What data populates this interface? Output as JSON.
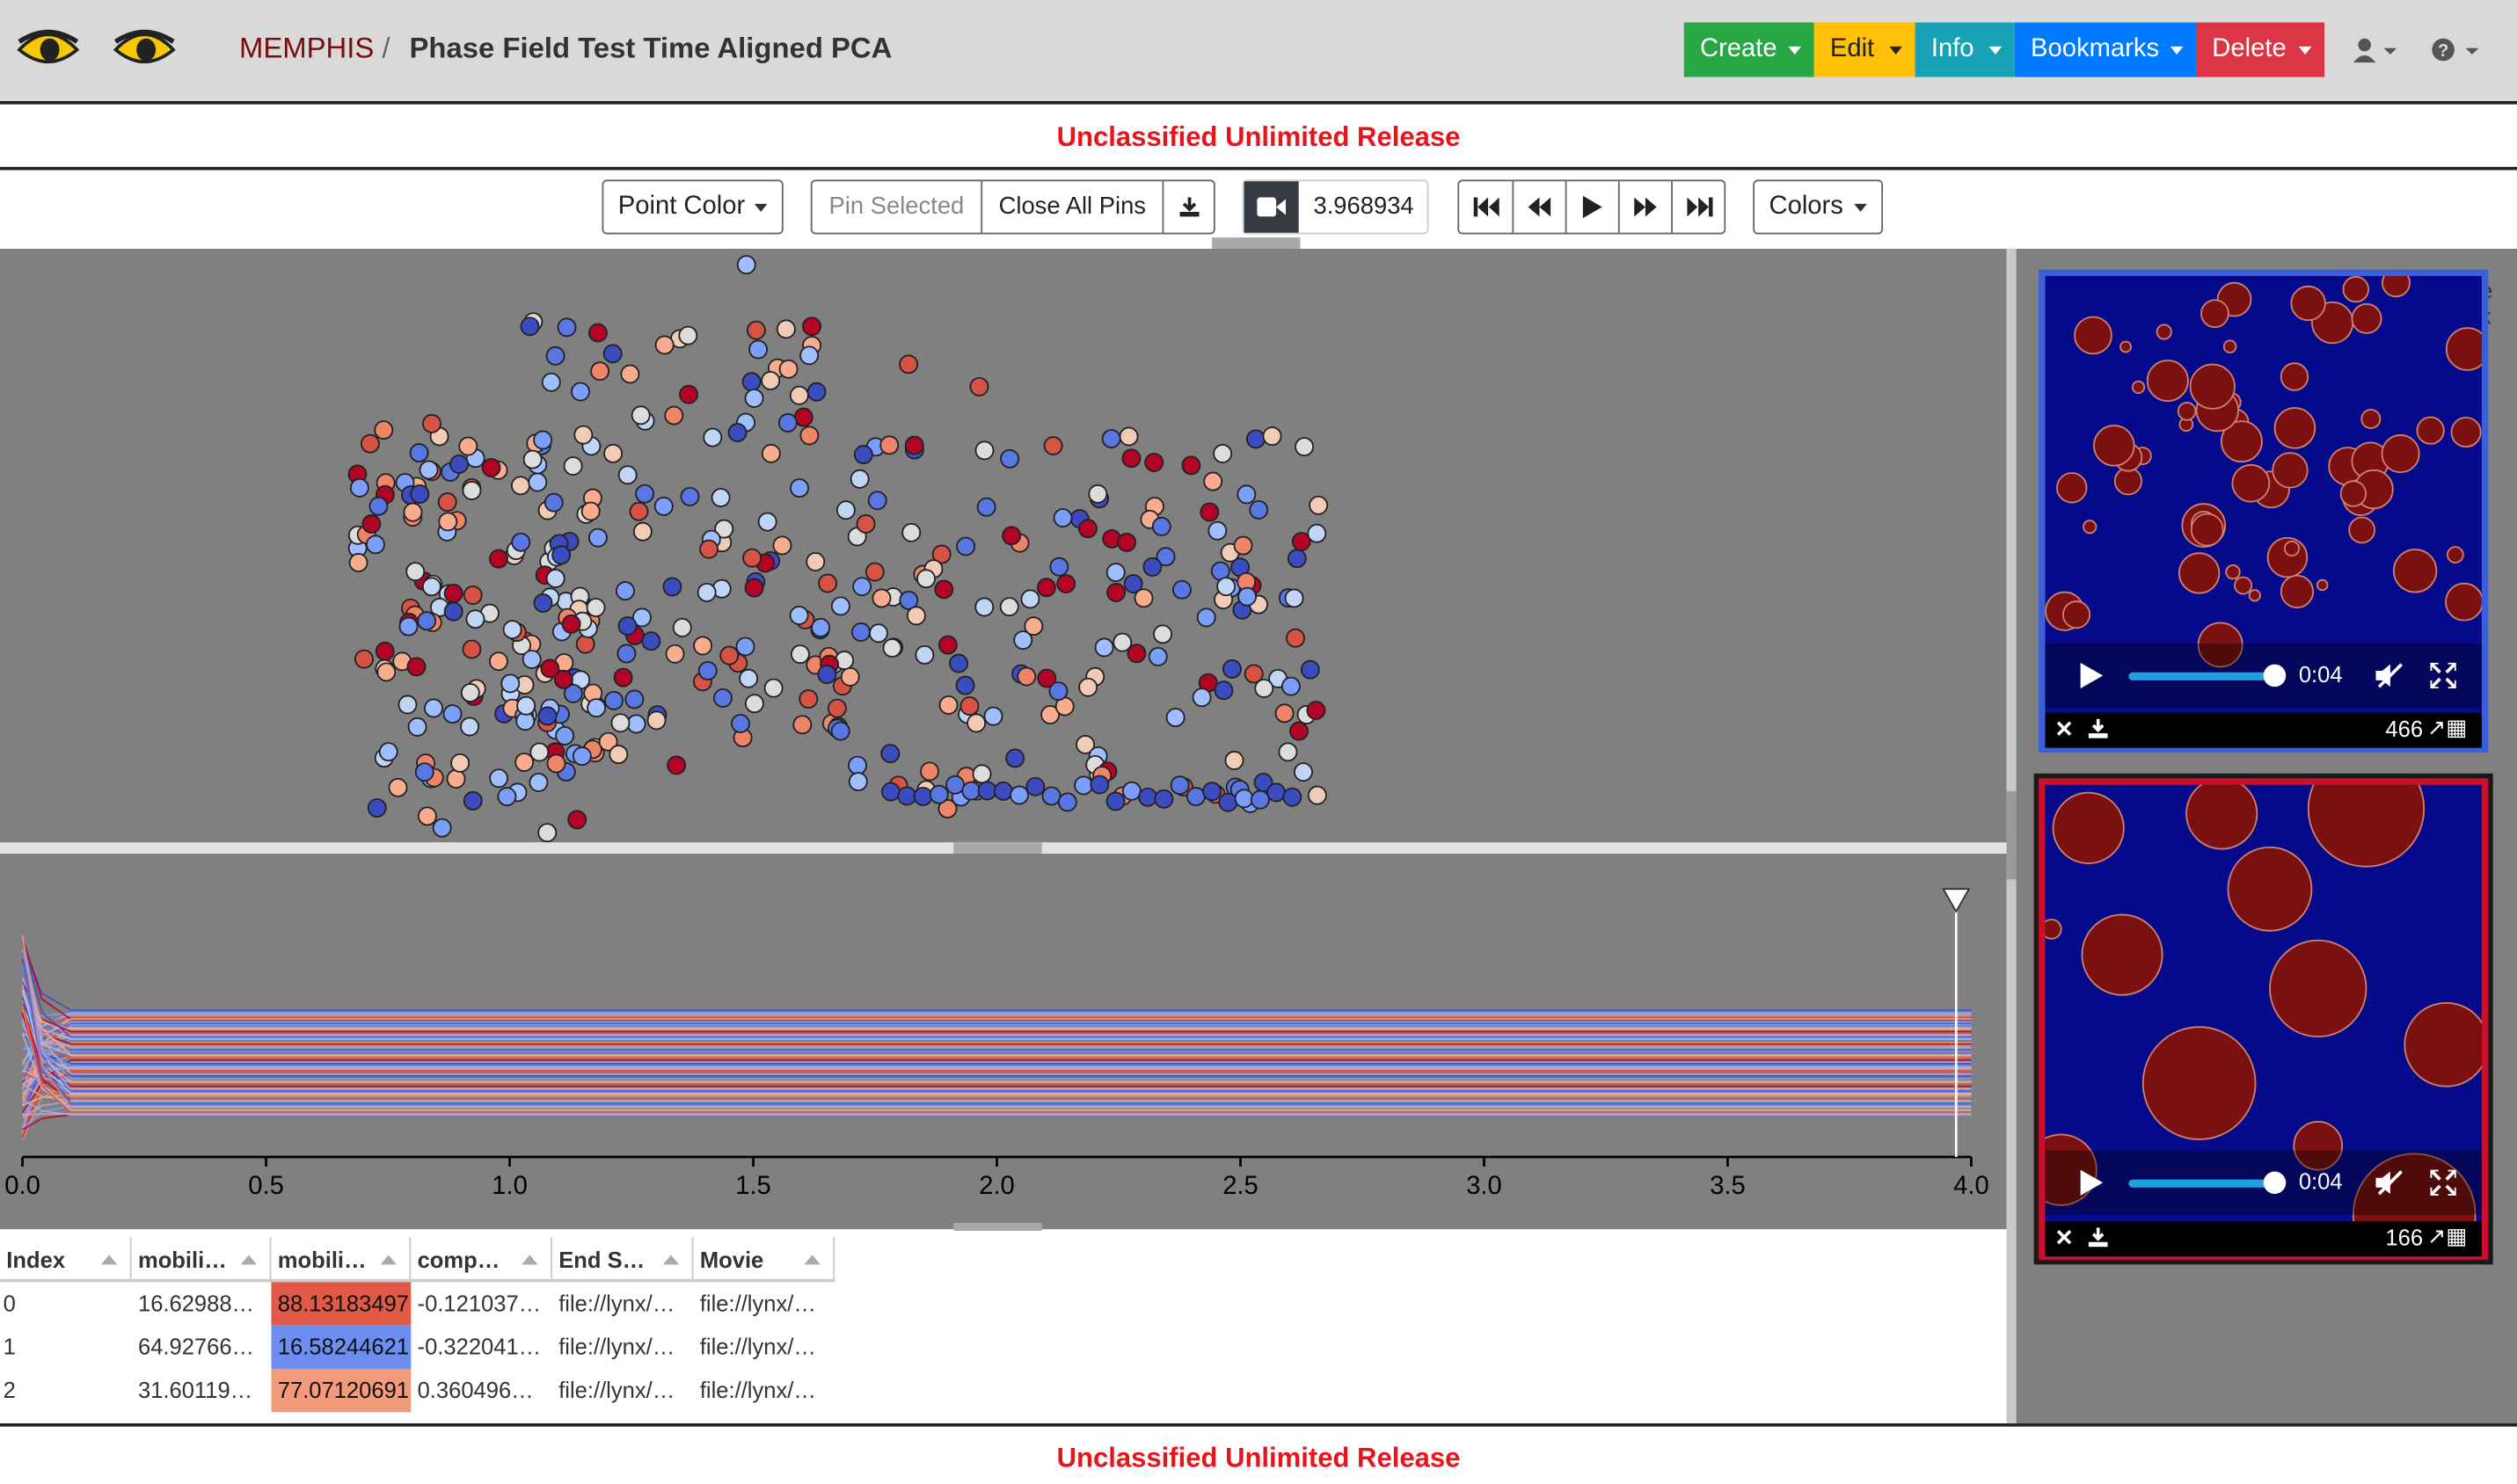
{
  "navbar": {
    "app_name": "MEMPHIS",
    "separator": "/",
    "model_title": "Phase Field Test Time Aligned PCA",
    "menus": [
      {
        "label": "Create",
        "color": "#28a745"
      },
      {
        "label": "Edit",
        "color": "#ffc107"
      },
      {
        "label": "Info",
        "color": "#17a2b8"
      },
      {
        "label": "Bookmarks",
        "color": "#007bff"
      },
      {
        "label": "Delete",
        "color": "#dc3545"
      }
    ],
    "user_icon": "user-icon",
    "help_icon": "help-icon"
  },
  "banner_top": "Unclassified Unlimited Release",
  "banner_bottom": "Unclassified Unlimited Release",
  "toolbar": {
    "point_color": "Point Color",
    "pin_selected": "Pin Selected",
    "close_all_pins": "Close All Pins",
    "download_icon": "download-icon",
    "camera_icon": "video-camera-icon",
    "current_time": "3.968934",
    "playback_icons": [
      "first-frame-icon",
      "step-back-icon",
      "play-icon",
      "step-forward-icon",
      "last-frame-icon"
    ],
    "colors": "Colors"
  },
  "timeline": {
    "ticks": [
      "0.0",
      "0.5",
      "1.0",
      "1.5",
      "2.0",
      "2.5",
      "3.0",
      "3.5",
      "4.0"
    ],
    "cursor_time": 3.968934,
    "x_max": 4.0
  },
  "table": {
    "headers": [
      "Index",
      "mobili…",
      "mobili…",
      "comp…",
      "End S…",
      "Movie"
    ],
    "rows": [
      {
        "index": "0",
        "col1": "16.62988…",
        "col2": "88.13183497",
        "col2_color": "#e05a47",
        "col3": "-0.121037…",
        "col4": "file://lynx/…",
        "col5": "file://lynx/…"
      },
      {
        "index": "1",
        "col1": "64.92766…",
        "col2": "16.58244621",
        "col2_color": "#6b8ef0",
        "col3": "-0.322041…",
        "col4": "file://lynx/…",
        "col5": "file://lynx/…"
      },
      {
        "index": "2",
        "col1": "31.60119…",
        "col2": "77.07120691",
        "col2_color": "#f39a7b",
        "col3": "0.360496…",
        "col4": "file://lynx/…",
        "col5": "file://lynx/…"
      }
    ]
  },
  "videos": [
    {
      "time": "0:04",
      "index": "466",
      "border_color": "#3a5fd8",
      "progress": 1.0
    },
    {
      "time": "0:04",
      "index": "166",
      "border_color": "#c8102e",
      "progress": 1.0
    }
  ]
}
